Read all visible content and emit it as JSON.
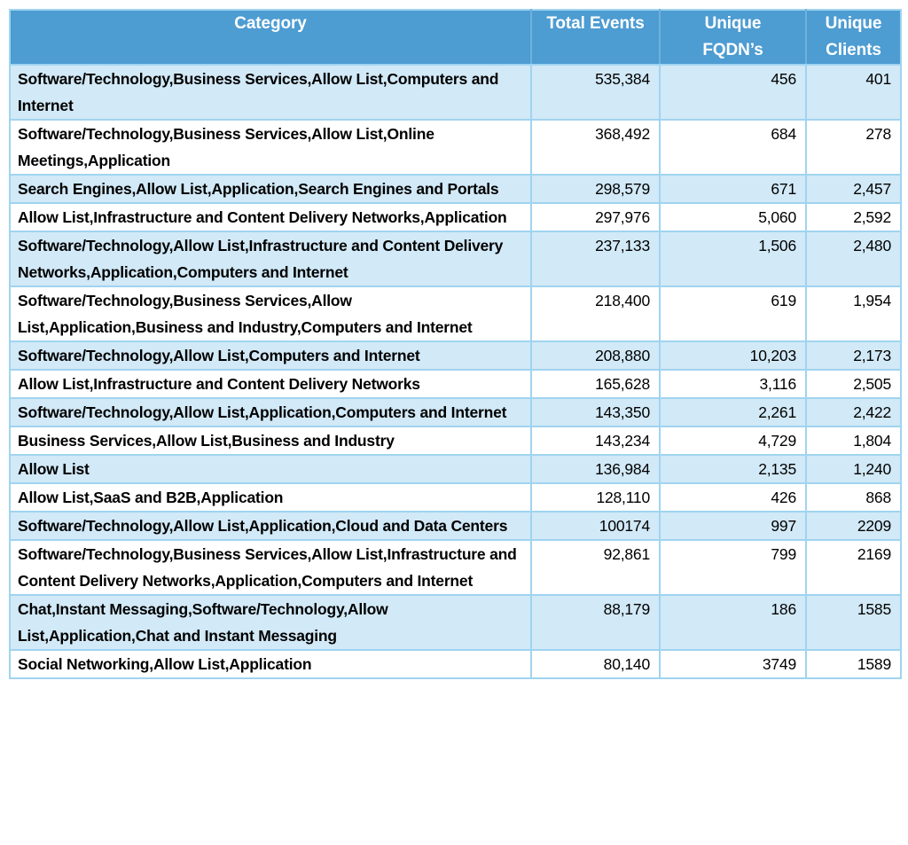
{
  "chart_data": {
    "type": "table",
    "columns": [
      "Category",
      "Total Events",
      "Unique\nFQDN’s",
      "Unique\nClients"
    ],
    "rows": [
      [
        "Software/Technology,Business Services,Allow List,Computers and Internet",
        "535,384",
        "456",
        "401"
      ],
      [
        "Software/Technology,Business Services,Allow List,Online Meetings,Application",
        "368,492",
        "684",
        "278"
      ],
      [
        "Search Engines,Allow List,Application,Search Engines and Portals",
        "298,579",
        "671",
        "2,457"
      ],
      [
        "Allow List,Infrastructure and Content Delivery Networks,Application",
        "297,976",
        "5,060",
        "2,592"
      ],
      [
        "Software/Technology,Allow List,Infrastructure and Content Delivery Networks,Application,Computers and Internet",
        "237,133",
        "1,506",
        "2,480"
      ],
      [
        "Software/Technology,Business Services,Allow List,Application,Business and Industry,Computers and Internet",
        "218,400",
        "619",
        "1,954"
      ],
      [
        "Software/Technology,Allow List,Computers and Internet",
        "208,880",
        "10,203",
        "2,173"
      ],
      [
        "Allow List,Infrastructure and Content Delivery Networks",
        "165,628",
        "3,116",
        "2,505"
      ],
      [
        "Software/Technology,Allow List,Application,Computers and Internet",
        "143,350",
        "2,261",
        "2,422"
      ],
      [
        "Business Services,Allow List,Business and Industry",
        "143,234",
        "4,729",
        "1,804"
      ],
      [
        "Allow List",
        "136,984",
        "2,135",
        "1,240"
      ],
      [
        "Allow List,SaaS and B2B,Application",
        "128,110",
        "426",
        "868"
      ],
      [
        "Software/Technology,Allow List,Application,Cloud and Data Centers",
        "100174",
        "997",
        "2209"
      ],
      [
        "Software/Technology,Business Services,Allow List,Infrastructure and Content Delivery Networks,Application,Computers and Internet",
        "92,861",
        "799",
        "2169"
      ],
      [
        "Chat,Instant Messaging,Software/Technology,Allow List,Application,Chat and Instant Messaging",
        "88,179",
        "186",
        "1585"
      ],
      [
        "Social Networking,Allow List,Application",
        "80,140",
        "3749",
        "1589"
      ]
    ]
  },
  "colors": {
    "header_bg": "#4D9CD2",
    "header_text": "#FFFFFF",
    "row_alt_bg": "#D2E9F7",
    "row_bg": "#FFFFFF",
    "border": "#A0D4F0",
    "header_divider": "#6FB1DD",
    "text": "#000000"
  }
}
